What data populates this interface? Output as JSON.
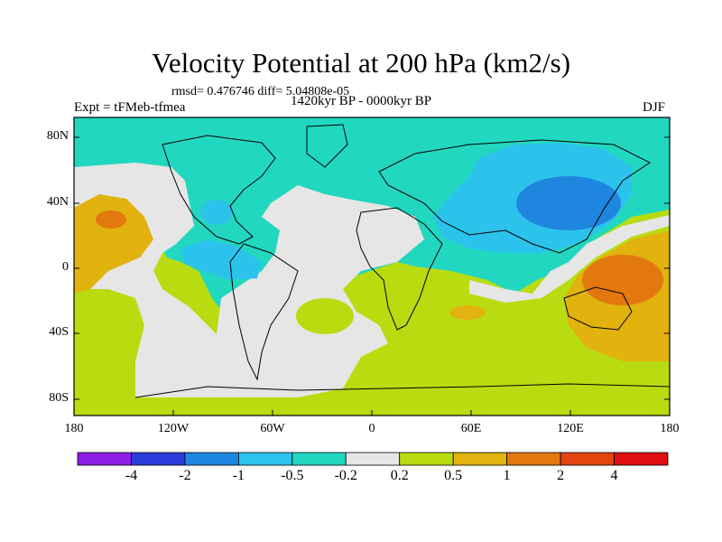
{
  "title": "Velocity Potential at 200 hPa (km2/s)",
  "stats": "rmsd= 0.476746 diff= 5.04808e-05",
  "experiment": "Expt = tFMeb-tfmea",
  "period": "1420kyr BP - 0000kyr BP",
  "season": "DJF",
  "lat_labels": [
    "80N",
    "40N",
    "0",
    "40S",
    "80S"
  ],
  "lon_labels": [
    "180",
    "120W",
    "60W",
    "0",
    "60E",
    "120E",
    "180"
  ],
  "colorbar": {
    "labels": [
      "-4",
      "-2",
      "-1",
      "-0.5",
      "-0.2",
      "0.2",
      "0.5",
      "1",
      "2",
      "4"
    ],
    "colors": [
      "#8c1ee8",
      "#2a3ddc",
      "#1f86e0",
      "#2bc3ec",
      "#22d7c0",
      "#e6e6e6",
      "#b8dc10",
      "#e2b20e",
      "#e2780e",
      "#e2440e",
      "#e00e0e"
    ]
  },
  "colors": {
    "teal": "#22d7c0",
    "sky": "#2bc3ec",
    "blue": "#1f86e0",
    "grey": "#e6e6e6",
    "lime": "#b8dc10",
    "gold": "#e2b20e",
    "orange": "#e2780e"
  }
}
